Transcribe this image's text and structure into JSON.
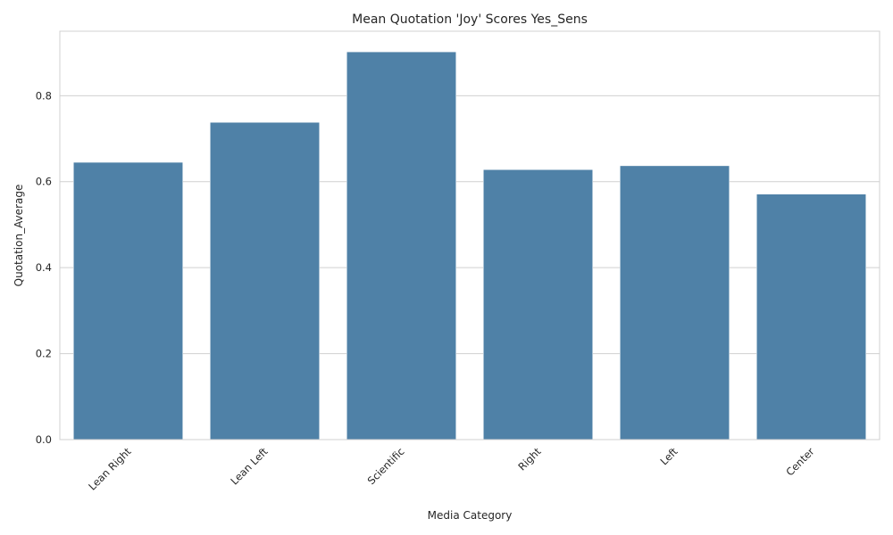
{
  "chart_data": {
    "type": "bar",
    "title": "Mean Quotation 'Joy' Scores Yes_Sens",
    "xlabel": "Media Category",
    "ylabel": "Quotation_Average",
    "categories": [
      "Lean Right",
      "Lean Left",
      "Scientific",
      "Right",
      "Left",
      "Center"
    ],
    "values": [
      0.645,
      0.738,
      0.902,
      0.628,
      0.637,
      0.571
    ],
    "ylim": [
      0,
      0.95
    ],
    "yticks": [
      0.0,
      0.2,
      0.4,
      0.6,
      0.8
    ],
    "ytick_labels": [
      "0.0",
      "0.2",
      "0.4",
      "0.6",
      "0.8"
    ],
    "grid": true,
    "bar_color": "#4f81a7",
    "grid_color": "#d0d0d0"
  }
}
